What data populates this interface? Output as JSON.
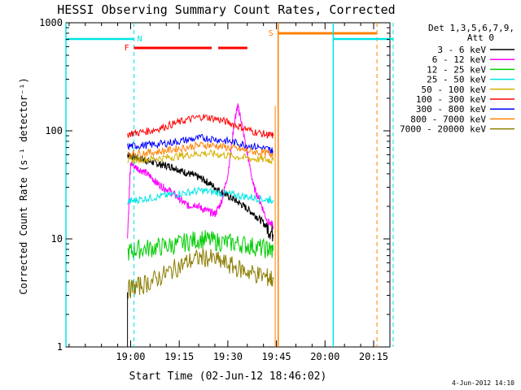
{
  "chart_data": {
    "type": "line",
    "title": "HESSI Observing Summary Count Rates, Corrected",
    "xlabel": "Start Time (02-Jun-12 18:46:02)",
    "ylabel": "Corrected Count Rate (s⁻¹ detector⁻¹)",
    "yscale": "log",
    "ylim": [
      1,
      1000
    ],
    "xlim_minutes_after_start": [
      -6,
      94
    ],
    "x_ticks": [
      "19:00",
      "19:15",
      "19:30",
      "19:45",
      "20:00",
      "20:15"
    ],
    "y_ticks": [
      "1",
      "10",
      "100",
      "1000"
    ],
    "legend_header": [
      "Det 1,3,5,6,7,9,",
      "Att 0"
    ],
    "legend_position": "top-right",
    "footer_date": "4-Jun-2012 14:10",
    "markers": {
      "night_label": "N",
      "flare_label": "F",
      "saa_label": "S"
    },
    "series": [
      {
        "name": "3 - 6 keV",
        "color": "#000000",
        "x": [
          13,
          14,
          16,
          18,
          20,
          22,
          24,
          26,
          28,
          30,
          32,
          34,
          36,
          38,
          40,
          42,
          44,
          46,
          48,
          50,
          52,
          54,
          56,
          58
        ],
        "y": [
          60,
          58,
          56,
          54,
          52,
          50,
          48,
          47,
          45,
          42,
          40,
          38,
          36,
          33,
          30,
          27,
          25,
          23,
          21,
          19,
          17,
          15,
          13,
          11
        ]
      },
      {
        "name": "6 - 12 keV",
        "color": "#ff00ff",
        "x": [
          13,
          14,
          16,
          18,
          20,
          22,
          24,
          26,
          28,
          30,
          32,
          34,
          36,
          38,
          40,
          42,
          44,
          46,
          47,
          48,
          50,
          52,
          54,
          56,
          58
        ],
        "y": [
          12,
          50,
          45,
          42,
          38,
          33,
          30,
          28,
          25,
          22,
          20,
          21,
          19,
          18,
          17,
          22,
          40,
          120,
          170,
          130,
          60,
          30,
          22,
          15,
          13
        ]
      },
      {
        "name": "12 - 25 keV",
        "color": "#00cc00",
        "x": [
          13,
          16,
          20,
          24,
          28,
          32,
          36,
          40,
          44,
          48,
          52,
          56,
          58
        ],
        "y": [
          7.5,
          8,
          8.2,
          8.5,
          8.8,
          9.5,
          10,
          9.5,
          9.2,
          9,
          8.5,
          8,
          7.8
        ]
      },
      {
        "name": "25 - 50 keV",
        "color": "#00e5e5",
        "x": [
          13,
          16,
          20,
          24,
          28,
          32,
          36,
          40,
          44,
          48,
          52,
          56,
          58
        ],
        "y": [
          22,
          23,
          24,
          25,
          26,
          27,
          28,
          27,
          26,
          25,
          24,
          23,
          23
        ]
      },
      {
        "name": "50 - 100 keV",
        "color": "#d4b000",
        "x": [
          13,
          16,
          20,
          24,
          28,
          32,
          36,
          40,
          44,
          48,
          52,
          56,
          58
        ],
        "y": [
          53,
          54,
          55,
          56,
          58,
          60,
          62,
          61,
          59,
          57,
          55,
          54,
          53
        ]
      },
      {
        "name": "100 - 300 keV",
        "color": "#ff0000",
        "x": [
          13,
          16,
          20,
          24,
          28,
          32,
          36,
          40,
          44,
          48,
          52,
          56,
          58
        ],
        "y": [
          94,
          96,
          100,
          108,
          118,
          128,
          135,
          130,
          120,
          108,
          98,
          92,
          90
        ]
      },
      {
        "name": "300 - 800 keV",
        "color": "#0000ff",
        "x": [
          13,
          16,
          20,
          24,
          28,
          32,
          36,
          40,
          44,
          48,
          52,
          56,
          58
        ],
        "y": [
          72,
          73,
          74,
          76,
          79,
          83,
          86,
          84,
          80,
          76,
          72,
          68,
          65
        ]
      },
      {
        "name": "800 - 7000 keV",
        "color": "#ff8000",
        "x": [
          13,
          16,
          20,
          24,
          28,
          32,
          36,
          40,
          44,
          48,
          52,
          56,
          58
        ],
        "y": [
          61,
          62,
          63,
          65,
          68,
          71,
          74,
          73,
          70,
          67,
          64,
          62,
          61
        ]
      },
      {
        "name": "7000 - 20000 keV",
        "color": "#8b7d00",
        "x": [
          13,
          16,
          20,
          24,
          28,
          32,
          36,
          40,
          44,
          48,
          52,
          56,
          58
        ],
        "y": [
          3.4,
          3.6,
          4.0,
          4.6,
          5.4,
          6.2,
          6.8,
          6.4,
          5.8,
          5.2,
          4.8,
          4.4,
          4.2
        ]
      }
    ]
  }
}
